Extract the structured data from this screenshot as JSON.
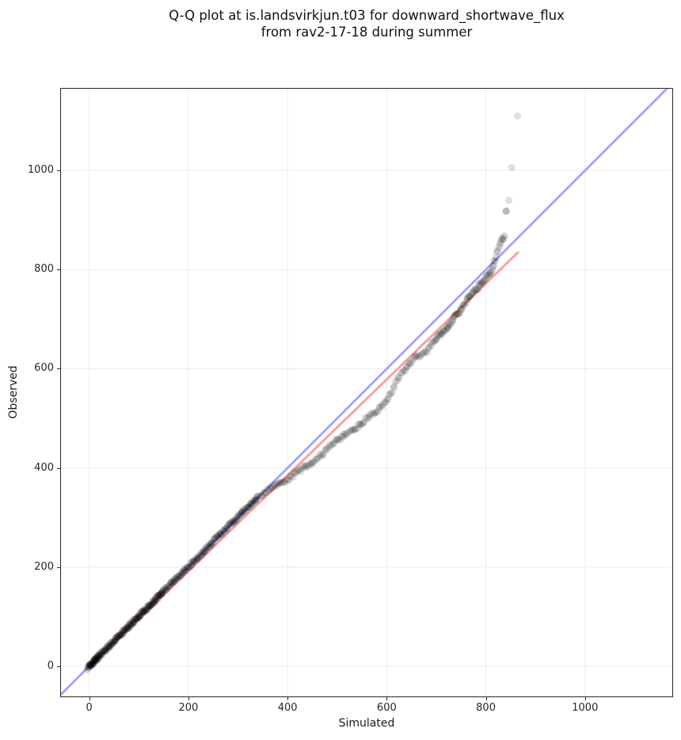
{
  "title": {
    "line1": "Q-Q plot at is.landsvirkjun.t03 for downward_shortwave_flux",
    "line2": "from rav2-17-18 during summer"
  },
  "axes": {
    "xlabel": "Simulated",
    "ylabel": "Observed"
  },
  "chart_data": {
    "type": "scatter",
    "title": "Q-Q plot at is.landsvirkjun.t03 for downward_shortwave_flux from rav2-17-18 during summer",
    "xlabel": "Simulated",
    "ylabel": "Observed",
    "xlim": [
      -57,
      1176
    ],
    "ylim": [
      -61,
      1165
    ],
    "x_ticks": [
      0,
      200,
      400,
      600,
      800,
      1000
    ],
    "y_ticks": [
      0,
      200,
      400,
      600,
      800,
      1000
    ],
    "grid": true,
    "grid_color": "#ececec",
    "background": "#ffffff",
    "legend": "none",
    "identity_line": {
      "name": "identity y=x",
      "color": "#a6a6fa",
      "width": 3,
      "from": [
        -61,
        -61
      ],
      "to": [
        1176,
        1176
      ]
    },
    "fit_line": {
      "name": "regression fit",
      "color": "#f8a2a2",
      "width": 3,
      "from": [
        0,
        -2
      ],
      "to": [
        866,
        836
      ]
    },
    "points": {
      "color": "#000000",
      "alpha": 0.13,
      "radius": 4.6,
      "quantile_curve": [
        [
          0,
          0
        ],
        [
          25,
          26
        ],
        [
          50,
          51
        ],
        [
          75,
          76
        ],
        [
          100,
          101
        ],
        [
          125,
          126
        ],
        [
          150,
          151
        ],
        [
          175,
          177
        ],
        [
          200,
          201
        ],
        [
          225,
          226
        ],
        [
          250,
          252
        ],
        [
          275,
          276
        ],
        [
          300,
          302
        ],
        [
          320,
          321
        ],
        [
          340,
          341
        ],
        [
          355,
          352
        ],
        [
          370,
          361
        ],
        [
          385,
          370
        ],
        [
          400,
          377
        ],
        [
          415,
          388
        ],
        [
          430,
          399
        ],
        [
          447,
          409
        ],
        [
          462,
          419
        ],
        [
          478,
          437
        ],
        [
          495,
          452
        ],
        [
          512,
          464
        ],
        [
          528,
          474
        ],
        [
          545,
          486
        ],
        [
          562,
          502
        ],
        [
          578,
          513
        ],
        [
          594,
          528
        ],
        [
          605,
          545
        ],
        [
          613,
          558
        ],
        [
          619,
          575
        ],
        [
          628,
          588
        ],
        [
          638,
          599
        ],
        [
          648,
          613
        ],
        [
          658,
          622
        ],
        [
          670,
          630
        ],
        [
          682,
          636
        ],
        [
          695,
          657
        ],
        [
          706,
          668
        ],
        [
          718,
          680
        ],
        [
          729,
          691
        ],
        [
          736,
          704
        ],
        [
          745,
          713
        ],
        [
          754,
          726
        ],
        [
          763,
          741
        ],
        [
          772,
          751
        ],
        [
          781,
          760
        ],
        [
          790,
          771
        ],
        [
          799,
          783
        ],
        [
          806,
          790
        ],
        [
          811,
          797
        ],
        [
          815,
          806
        ],
        [
          818,
          817
        ],
        [
          821,
          828
        ],
        [
          824,
          838
        ],
        [
          827,
          848
        ],
        [
          830,
          855
        ],
        [
          833,
          861
        ],
        [
          836,
          866
        ],
        [
          838,
          871
        ]
      ],
      "outliers": [
        [
          841,
          918,
          0.28
        ],
        [
          846,
          940,
          0.12
        ],
        [
          852,
          1006,
          0.12
        ],
        [
          864,
          1110,
          0.12
        ]
      ]
    }
  }
}
